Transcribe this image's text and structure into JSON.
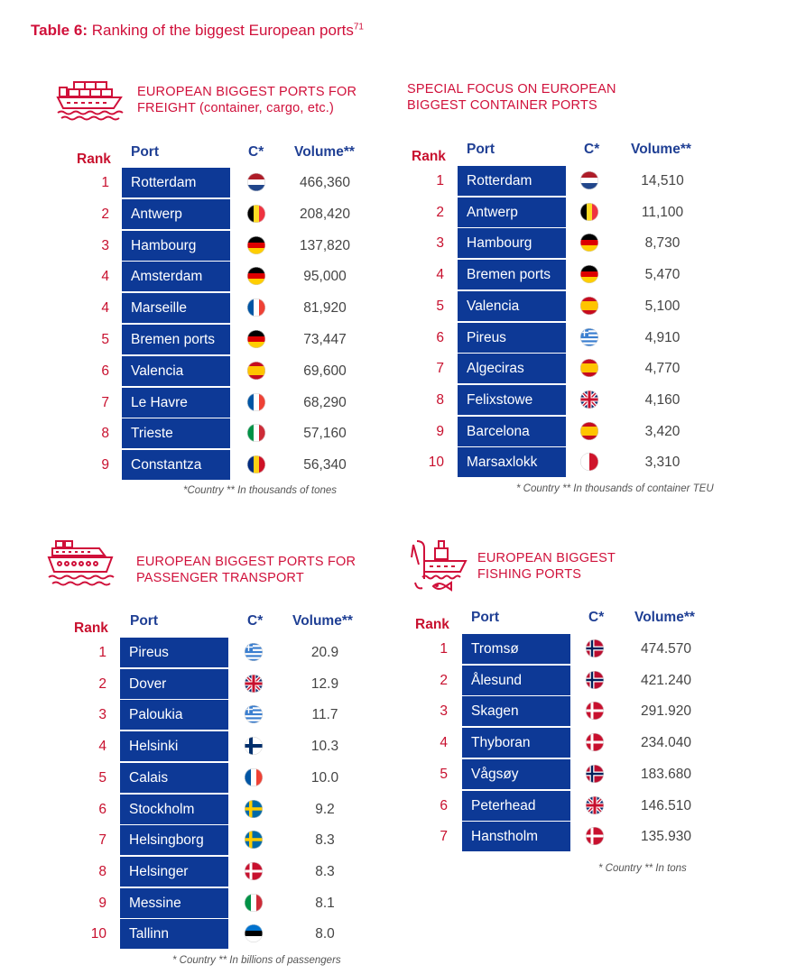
{
  "title": {
    "bold": "Table 6:",
    "text": " Ranking of the biggest European ports",
    "sup": "71"
  },
  "headers": {
    "rank": "Rank",
    "port": "Port",
    "country": "C*",
    "volume": "Volume**"
  },
  "colors": {
    "red": "#d0103a",
    "navy": "#0d3996"
  },
  "sections": [
    {
      "id": "freight",
      "icon": "container-ship-icon",
      "heading": [
        "EUROPEAN BIGGEST PORTS FOR",
        "FREIGHT (container, cargo, etc.)"
      ],
      "note": "*Country ** In thousands of tones",
      "rows": [
        {
          "rank": "1",
          "port": "Rotterdam",
          "flag": "nl",
          "volume": "466,360"
        },
        {
          "rank": "2",
          "port": "Antwerp",
          "flag": "be",
          "volume": "208,420"
        },
        {
          "rank": "3",
          "port": "Hambourg",
          "flag": "de",
          "volume": "137,820"
        },
        {
          "rank": "4",
          "port": "Amsterdam",
          "flag": "de",
          "volume": "95,000"
        },
        {
          "rank": "4",
          "port": "Marseille",
          "flag": "fr",
          "volume": "81,920"
        },
        {
          "rank": "5",
          "port": "Bremen ports",
          "flag": "de",
          "volume": "73,447"
        },
        {
          "rank": "6",
          "port": "Valencia",
          "flag": "es",
          "volume": "69,600"
        },
        {
          "rank": "7",
          "port": "Le Havre",
          "flag": "fr",
          "volume": "68,290"
        },
        {
          "rank": "8",
          "port": "Trieste",
          "flag": "it",
          "volume": "57,160"
        },
        {
          "rank": "9",
          "port": "Constantza",
          "flag": "ro",
          "volume": "56,340"
        }
      ]
    },
    {
      "id": "container",
      "icon": "",
      "heading": [
        "SPECIAL FOCUS ON EUROPEAN",
        "BIGGEST CONTAINER PORTS"
      ],
      "note": "* Country ** In thousands of container TEU",
      "rows": [
        {
          "rank": "1",
          "port": "Rotterdam",
          "flag": "nl",
          "volume": "14,510"
        },
        {
          "rank": "2",
          "port": "Antwerp",
          "flag": "be",
          "volume": "11,100"
        },
        {
          "rank": "3",
          "port": "Hambourg",
          "flag": "de",
          "volume": "8,730"
        },
        {
          "rank": "4",
          "port": "Bremen ports",
          "flag": "de",
          "volume": "5,470"
        },
        {
          "rank": "5",
          "port": "Valencia",
          "flag": "es",
          "volume": "5,100"
        },
        {
          "rank": "6",
          "port": "Pireus",
          "flag": "gr",
          "volume": "4,910"
        },
        {
          "rank": "7",
          "port": "Algeciras",
          "flag": "es",
          "volume": "4,770"
        },
        {
          "rank": "8",
          "port": "Felixstowe",
          "flag": "gb",
          "volume": "4,160"
        },
        {
          "rank": "9",
          "port": "Barcelona",
          "flag": "es",
          "volume": "3,420"
        },
        {
          "rank": "10",
          "port": "Marsaxlokk",
          "flag": "mt",
          "volume": "3,310"
        }
      ]
    },
    {
      "id": "passenger",
      "icon": "cruise-ship-icon",
      "heading": [
        "EUROPEAN BIGGEST PORTS FOR",
        "PASSENGER TRANSPORT"
      ],
      "note": "* Country ** In billions of passengers",
      "rows": [
        {
          "rank": "1",
          "port": "Pireus",
          "flag": "gr",
          "volume": "20.9"
        },
        {
          "rank": "2",
          "port": "Dover",
          "flag": "gb",
          "volume": "12.9"
        },
        {
          "rank": "3",
          "port": "Paloukia",
          "flag": "gr",
          "volume": "11.7"
        },
        {
          "rank": "4",
          "port": "Helsinki",
          "flag": "fi",
          "volume": "10.3"
        },
        {
          "rank": "5",
          "port": "Calais",
          "flag": "fr",
          "volume": "10.0"
        },
        {
          "rank": "6",
          "port": "Stockholm",
          "flag": "se",
          "volume": "9.2"
        },
        {
          "rank": "7",
          "port": "Helsingborg",
          "flag": "se",
          "volume": "8.3"
        },
        {
          "rank": "8",
          "port": "Helsinger",
          "flag": "dk",
          "volume": "8.3"
        },
        {
          "rank": "9",
          "port": "Messine",
          "flag": "it",
          "volume": "8.1"
        },
        {
          "rank": "10",
          "port": "Tallinn",
          "flag": "ee",
          "volume": "8.0"
        }
      ]
    },
    {
      "id": "fishing",
      "icon": "fishing-boat-icon",
      "heading": [
        "EUROPEAN BIGGEST",
        "FISHING PORTS"
      ],
      "note": "* Country ** In tons",
      "rows": [
        {
          "rank": "1",
          "port": "Tromsø",
          "flag": "no",
          "volume": "474.570"
        },
        {
          "rank": "2",
          "port": "Ålesund",
          "flag": "no",
          "volume": "421.240"
        },
        {
          "rank": "3",
          "port": "Skagen",
          "flag": "dk",
          "volume": "291.920"
        },
        {
          "rank": "4",
          "port": "Thyboran",
          "flag": "dk",
          "volume": "234.040"
        },
        {
          "rank": "5",
          "port": "Vågsøy",
          "flag": "no",
          "volume": "183.680"
        },
        {
          "rank": "6",
          "port": "Peterhead",
          "flag": "gb",
          "volume": "146.510"
        },
        {
          "rank": "7",
          "port": "Hanstholm",
          "flag": "dk",
          "volume": "135.930"
        }
      ]
    }
  ]
}
